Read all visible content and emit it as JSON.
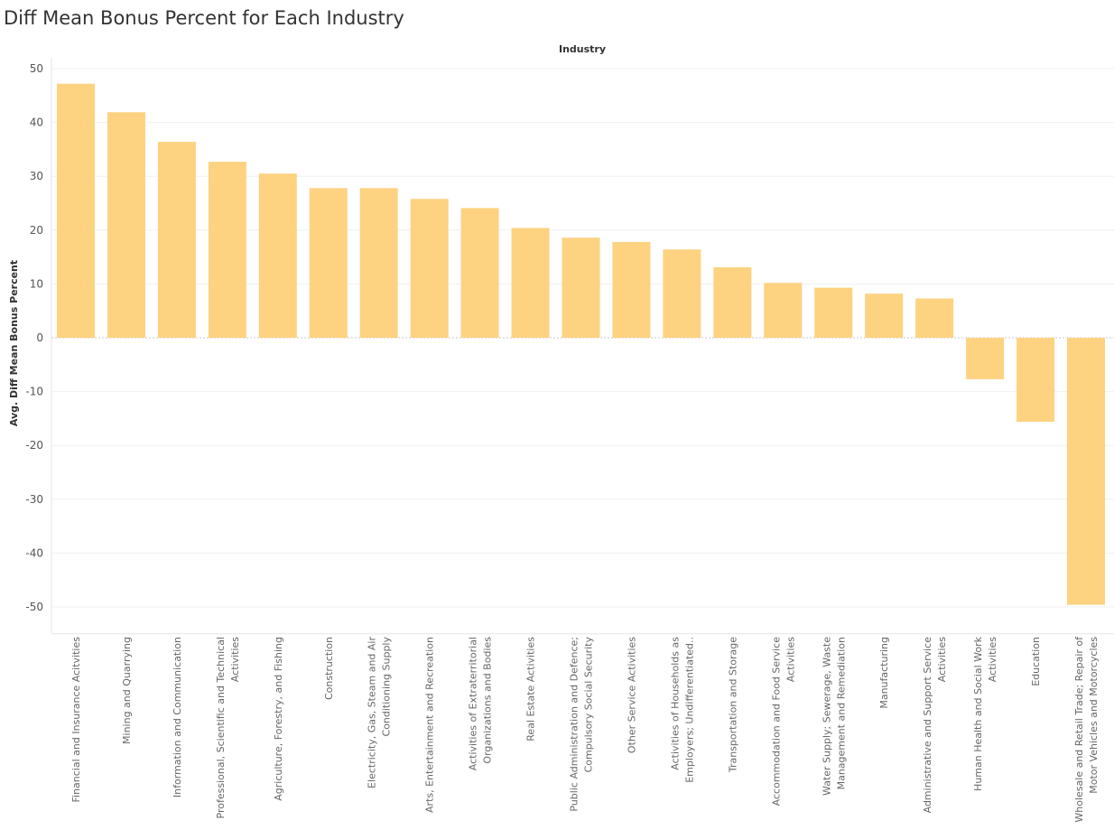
{
  "chart_data": {
    "type": "bar",
    "title": "Diff Mean Bonus Percent for Each Industry",
    "header": "Industry",
    "ylabel": "Avg. Diff Mean Bonus Percent",
    "ylim": [
      -55,
      52
    ],
    "yticks": [
      50,
      40,
      30,
      20,
      10,
      0,
      -10,
      -20,
      -30,
      -40,
      -50
    ],
    "grid": true,
    "bar_color": "#FDD281",
    "categories": [
      [
        "Financial and Insurance Acitvities"
      ],
      [
        "Mining and Quarrying"
      ],
      [
        "Information and Communication"
      ],
      [
        "Professional, Scientific and Technical",
        "Activities"
      ],
      [
        "Agriculture, Forestry, and Fishing"
      ],
      [
        "Construction"
      ],
      [
        "Electricity, Gas, Steam and Air",
        "Conditioning Supply"
      ],
      [
        "Arts, Entertainment and Recreation"
      ],
      [
        "Activities of Extraterritorial",
        "Organizations and Bodies"
      ],
      [
        "Real Estate Activities"
      ],
      [
        "Public Administration and Defence;",
        "Compulsory Social Security"
      ],
      [
        "Other Service Activities"
      ],
      [
        "Activities of Households as",
        "Employers; Undifferentiated.."
      ],
      [
        "Transportation and Storage"
      ],
      [
        "Accommodation and Food Service",
        "Activities"
      ],
      [
        "Water Supply; Sewerage, Waste",
        "Management and Remediation"
      ],
      [
        "Manufacturing"
      ],
      [
        "Administrative and Support Service",
        "Activities"
      ],
      [
        "Human Health and Social Work",
        "Activities"
      ],
      [
        "Education"
      ],
      [
        "Wholesale and Retail Trade; Repair of",
        "Motor Vehicles and Motorcycles"
      ]
    ],
    "values": [
      47.2,
      41.9,
      36.4,
      32.7,
      30.5,
      27.8,
      27.8,
      25.8,
      24.1,
      20.4,
      18.6,
      17.8,
      16.4,
      13.1,
      10.2,
      9.3,
      8.2,
      7.3,
      -7.7,
      -15.6,
      -49.6
    ]
  }
}
